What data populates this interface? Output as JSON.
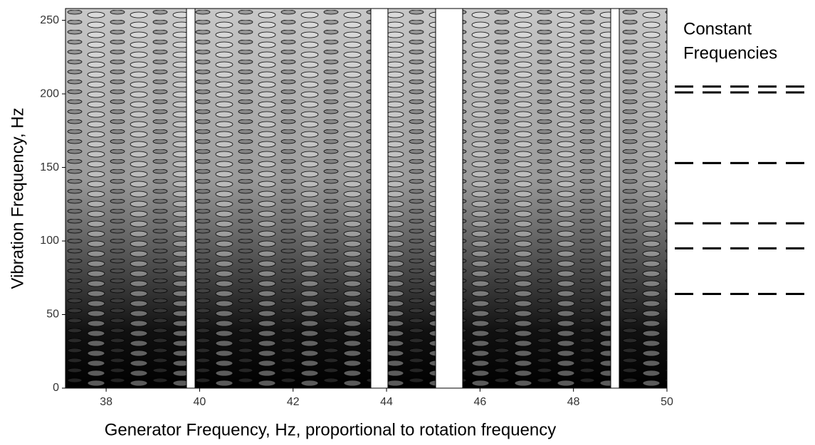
{
  "chart_data": {
    "type": "contour",
    "xlabel": "Generator Frequency, Hz, proportional to rotation frequency",
    "ylabel": "Vibration Frequency, Hz",
    "xlim": [
      37.13,
      50
    ],
    "ylim": [
      0,
      258
    ],
    "xticks": [
      38,
      40,
      42,
      44,
      46,
      48,
      50
    ],
    "yticks": [
      0,
      50,
      100,
      150,
      200,
      250
    ],
    "annotation": {
      "lines": [
        "Constant",
        "Frequencies"
      ],
      "values": [
        205,
        201,
        153,
        112,
        95,
        64
      ],
      "color": "#000000"
    }
  }
}
